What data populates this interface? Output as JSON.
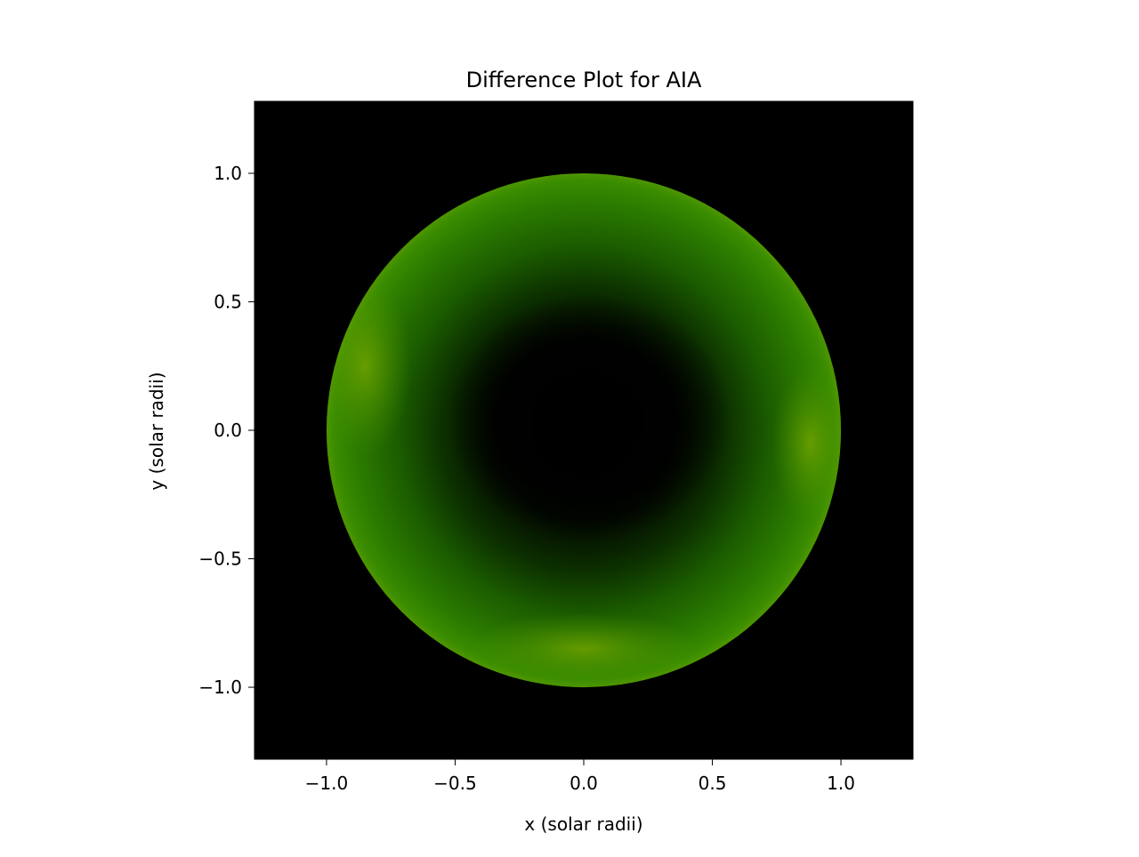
{
  "chart_data": {
    "type": "heatmap",
    "title": "Difference Plot for AIA",
    "xlabel": "x (solar radii)",
    "ylabel": "y (solar radii)",
    "xlim": [
      -1.28,
      1.28
    ],
    "ylim": [
      -1.28,
      1.28
    ],
    "x_ticks": [
      -1.0,
      -0.5,
      0.0,
      0.5,
      1.0
    ],
    "y_ticks": [
      -1.0,
      -0.5,
      0.0,
      0.5,
      1.0
    ],
    "x_tick_labels": [
      "−1.0",
      "−0.5",
      "0.0",
      "0.5",
      "1.0"
    ],
    "y_tick_labels": [
      "−1.0",
      "−0.5",
      "0.0",
      "0.5",
      "1.0"
    ],
    "grid": false,
    "disk_radius": 1.0,
    "colormap": "black-green-yellow",
    "colors": {
      "background": "#000000",
      "disk_low": "#000000",
      "disk_mid": "#1f6a00",
      "disk_high": "#6ea300"
    }
  }
}
